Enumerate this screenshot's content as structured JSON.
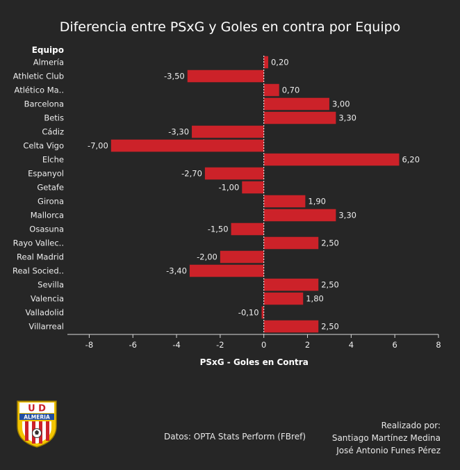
{
  "title": "Diferencia entre PSxG y Goles en contra por Equipo",
  "chart_data": {
    "type": "bar",
    "orientation": "horizontal",
    "y_header": "Equipo",
    "xlabel": "PSxG - Goles en Contra",
    "xlim": [
      -9,
      8
    ],
    "xticks": [
      -8,
      -6,
      -4,
      -2,
      0,
      2,
      4,
      6,
      8
    ],
    "categories": [
      "Almería",
      "Athletic Club",
      "Atlético Ma..",
      "Barcelona",
      "Betis",
      "Cádiz",
      "Celta Vigo",
      "Elche",
      "Espanyol",
      "Getafe",
      "Girona",
      "Mallorca",
      "Osasuna",
      "Rayo Vallec..",
      "Real Madrid",
      "Real Socied..",
      "Sevilla",
      "Valencia",
      "Valladolid",
      "Villarreal"
    ],
    "values": [
      0.2,
      -3.5,
      0.7,
      3.0,
      3.3,
      -3.3,
      -7.0,
      6.2,
      -2.7,
      -1.0,
      1.9,
      3.3,
      -1.5,
      2.5,
      -2.0,
      -3.4,
      2.5,
      1.8,
      -0.1,
      2.5
    ],
    "value_labels": [
      "0,20",
      "-3,50",
      "0,70",
      "3,00",
      "3,30",
      "-3,30",
      "-7,00",
      "6,20",
      "-2,70",
      "-1,00",
      "1,90",
      "3,30",
      "-1,50",
      "2,50",
      "-2,00",
      "-3,40",
      "2,50",
      "1,80",
      "-0,10",
      "2,50"
    ],
    "bar_color": "#cc2229",
    "grid": false
  },
  "footer": {
    "source": "Datos: OPTA Stats Perform (FBref)",
    "credit_heading": "Realizado por:",
    "authors": [
      "Santiago Martínez Medina",
      "José Antonio Funes Pérez"
    ]
  },
  "logo": {
    "letters_top": "U D",
    "letters_band": "ALMERIA"
  },
  "colors": {
    "background": "#262626",
    "bar": "#cc2229",
    "text": "#f2f2f2",
    "axis": "#d9d9d9"
  }
}
